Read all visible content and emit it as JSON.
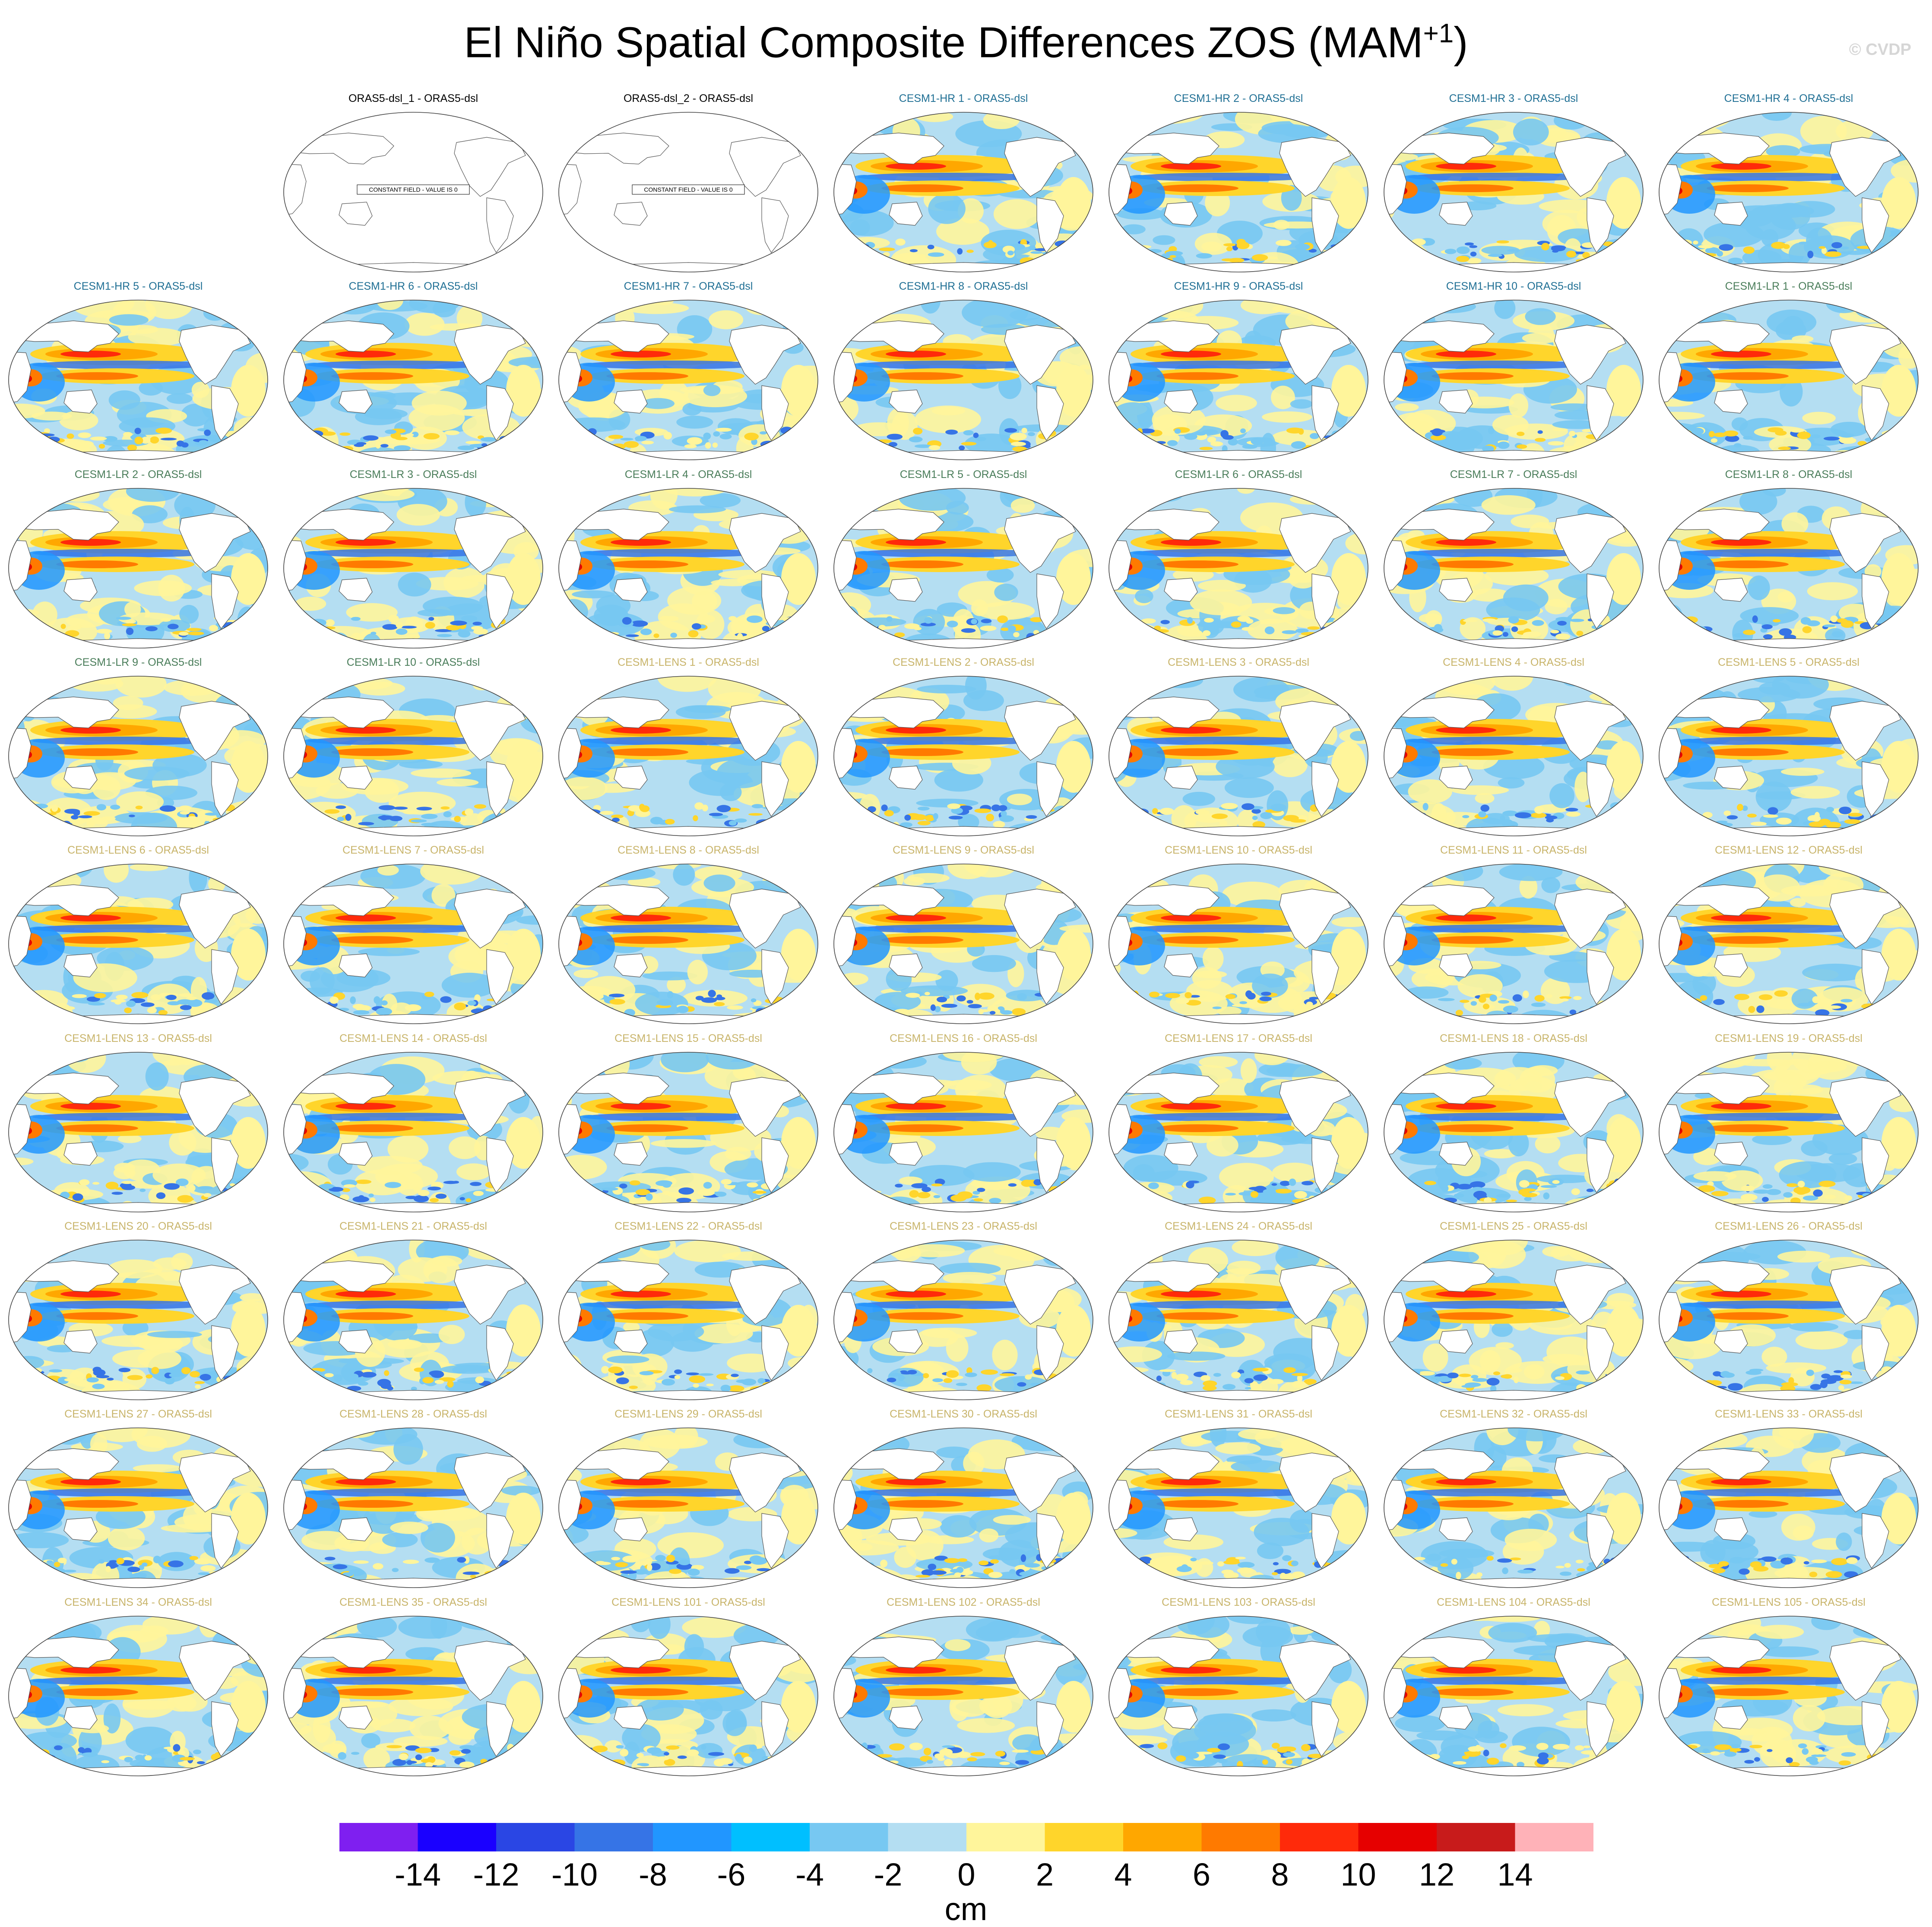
{
  "title": {
    "main": "El Niño Spatial Composite Differences ZOS (MAM",
    "sup": "+1",
    "close": ")"
  },
  "watermark": "© CVDP",
  "panels": [
    {
      "label": "ORAS5-dsl_1 - ORAS5-dsl",
      "group": "obs",
      "constant": true
    },
    {
      "label": "ORAS5-dsl_2 - ORAS5-dsl",
      "group": "obs",
      "constant": true
    },
    {
      "label": "CESM1-HR 1 - ORAS5-dsl",
      "group": "hr"
    },
    {
      "label": "CESM1-HR 2 - ORAS5-dsl",
      "group": "hr"
    },
    {
      "label": "CESM1-HR 3 - ORAS5-dsl",
      "group": "hr"
    },
    {
      "label": "CESM1-HR 4 - ORAS5-dsl",
      "group": "hr"
    },
    {
      "label": "CESM1-HR 5 - ORAS5-dsl",
      "group": "hr"
    },
    {
      "label": "CESM1-HR 6 - ORAS5-dsl",
      "group": "hr"
    },
    {
      "label": "CESM1-HR 7 - ORAS5-dsl",
      "group": "hr"
    },
    {
      "label": "CESM1-HR 8 - ORAS5-dsl",
      "group": "hr"
    },
    {
      "label": "CESM1-HR 9 - ORAS5-dsl",
      "group": "hr"
    },
    {
      "label": "CESM1-HR 10 - ORAS5-dsl",
      "group": "hr"
    },
    {
      "label": "CESM1-LR 1 - ORAS5-dsl",
      "group": "lr"
    },
    {
      "label": "CESM1-LR 2 - ORAS5-dsl",
      "group": "lr"
    },
    {
      "label": "CESM1-LR 3 - ORAS5-dsl",
      "group": "lr"
    },
    {
      "label": "CESM1-LR 4 - ORAS5-dsl",
      "group": "lr"
    },
    {
      "label": "CESM1-LR 5 - ORAS5-dsl",
      "group": "lr"
    },
    {
      "label": "CESM1-LR 6 - ORAS5-dsl",
      "group": "lr"
    },
    {
      "label": "CESM1-LR 7 - ORAS5-dsl",
      "group": "lr"
    },
    {
      "label": "CESM1-LR 8 - ORAS5-dsl",
      "group": "lr"
    },
    {
      "label": "CESM1-LR 9 - ORAS5-dsl",
      "group": "lr"
    },
    {
      "label": "CESM1-LR 10 - ORAS5-dsl",
      "group": "lr"
    },
    {
      "label": "CESM1-LENS 1 - ORAS5-dsl",
      "group": "lens"
    },
    {
      "label": "CESM1-LENS 2 - ORAS5-dsl",
      "group": "lens"
    },
    {
      "label": "CESM1-LENS 3 - ORAS5-dsl",
      "group": "lens"
    },
    {
      "label": "CESM1-LENS 4 - ORAS5-dsl",
      "group": "lens"
    },
    {
      "label": "CESM1-LENS 5 - ORAS5-dsl",
      "group": "lens"
    },
    {
      "label": "CESM1-LENS 6 - ORAS5-dsl",
      "group": "lens"
    },
    {
      "label": "CESM1-LENS 7 - ORAS5-dsl",
      "group": "lens"
    },
    {
      "label": "CESM1-LENS 8 - ORAS5-dsl",
      "group": "lens"
    },
    {
      "label": "CESM1-LENS 9 - ORAS5-dsl",
      "group": "lens"
    },
    {
      "label": "CESM1-LENS 10 - ORAS5-dsl",
      "group": "lens"
    },
    {
      "label": "CESM1-LENS 11 - ORAS5-dsl",
      "group": "lens"
    },
    {
      "label": "CESM1-LENS 12 - ORAS5-dsl",
      "group": "lens"
    },
    {
      "label": "CESM1-LENS 13 - ORAS5-dsl",
      "group": "lens"
    },
    {
      "label": "CESM1-LENS 14 - ORAS5-dsl",
      "group": "lens"
    },
    {
      "label": "CESM1-LENS 15 - ORAS5-dsl",
      "group": "lens"
    },
    {
      "label": "CESM1-LENS 16 - ORAS5-dsl",
      "group": "lens"
    },
    {
      "label": "CESM1-LENS 17 - ORAS5-dsl",
      "group": "lens"
    },
    {
      "label": "CESM1-LENS 18 - ORAS5-dsl",
      "group": "lens"
    },
    {
      "label": "CESM1-LENS 19 - ORAS5-dsl",
      "group": "lens"
    },
    {
      "label": "CESM1-LENS 20 - ORAS5-dsl",
      "group": "lens"
    },
    {
      "label": "CESM1-LENS 21 - ORAS5-dsl",
      "group": "lens"
    },
    {
      "label": "CESM1-LENS 22 - ORAS5-dsl",
      "group": "lens"
    },
    {
      "label": "CESM1-LENS 23 - ORAS5-dsl",
      "group": "lens"
    },
    {
      "label": "CESM1-LENS 24 - ORAS5-dsl",
      "group": "lens"
    },
    {
      "label": "CESM1-LENS 25 - ORAS5-dsl",
      "group": "lens"
    },
    {
      "label": "CESM1-LENS 26 - ORAS5-dsl",
      "group": "lens"
    },
    {
      "label": "CESM1-LENS 27 - ORAS5-dsl",
      "group": "lens"
    },
    {
      "label": "CESM1-LENS 28 - ORAS5-dsl",
      "group": "lens"
    },
    {
      "label": "CESM1-LENS 29 - ORAS5-dsl",
      "group": "lens"
    },
    {
      "label": "CESM1-LENS 30 - ORAS5-dsl",
      "group": "lens"
    },
    {
      "label": "CESM1-LENS 31 - ORAS5-dsl",
      "group": "lens"
    },
    {
      "label": "CESM1-LENS 32 - ORAS5-dsl",
      "group": "lens"
    },
    {
      "label": "CESM1-LENS 33 - ORAS5-dsl",
      "group": "lens"
    },
    {
      "label": "CESM1-LENS 34 - ORAS5-dsl",
      "group": "lens"
    },
    {
      "label": "CESM1-LENS 35 - ORAS5-dsl",
      "group": "lens"
    },
    {
      "label": "CESM1-LENS 101 - ORAS5-dsl",
      "group": "lens"
    },
    {
      "label": "CESM1-LENS 102 - ORAS5-dsl",
      "group": "lens"
    },
    {
      "label": "CESM1-LENS 103 - ORAS5-dsl",
      "group": "lens"
    },
    {
      "label": "CESM1-LENS 104 - ORAS5-dsl",
      "group": "lens"
    },
    {
      "label": "CESM1-LENS 105 - ORAS5-dsl",
      "group": "lens"
    }
  ],
  "constant_note": "CONSTANT FIELD - VALUE IS 0",
  "group_colors": {
    "obs": "#000000",
    "hr": "#1f6f94",
    "lr": "#4a7d5a",
    "lens": "#c8b46a"
  },
  "colorbar": {
    "colors": [
      "#7f1ff0",
      "#1a00ff",
      "#2a46e4",
      "#3674e6",
      "#2196ff",
      "#00bfff",
      "#77c8f2",
      "#b4def2",
      "#fff59b",
      "#ffd52b",
      "#ffa700",
      "#ff7a00",
      "#ff2a0a",
      "#e60000",
      "#c81b1b",
      "#ffb2b8"
    ],
    "labels": [
      "-14",
      "-12",
      "-10",
      "-8",
      "-6",
      "-4",
      "-2",
      "0",
      "2",
      "4",
      "6",
      "8",
      "10",
      "12",
      "14"
    ],
    "units": "cm"
  }
}
